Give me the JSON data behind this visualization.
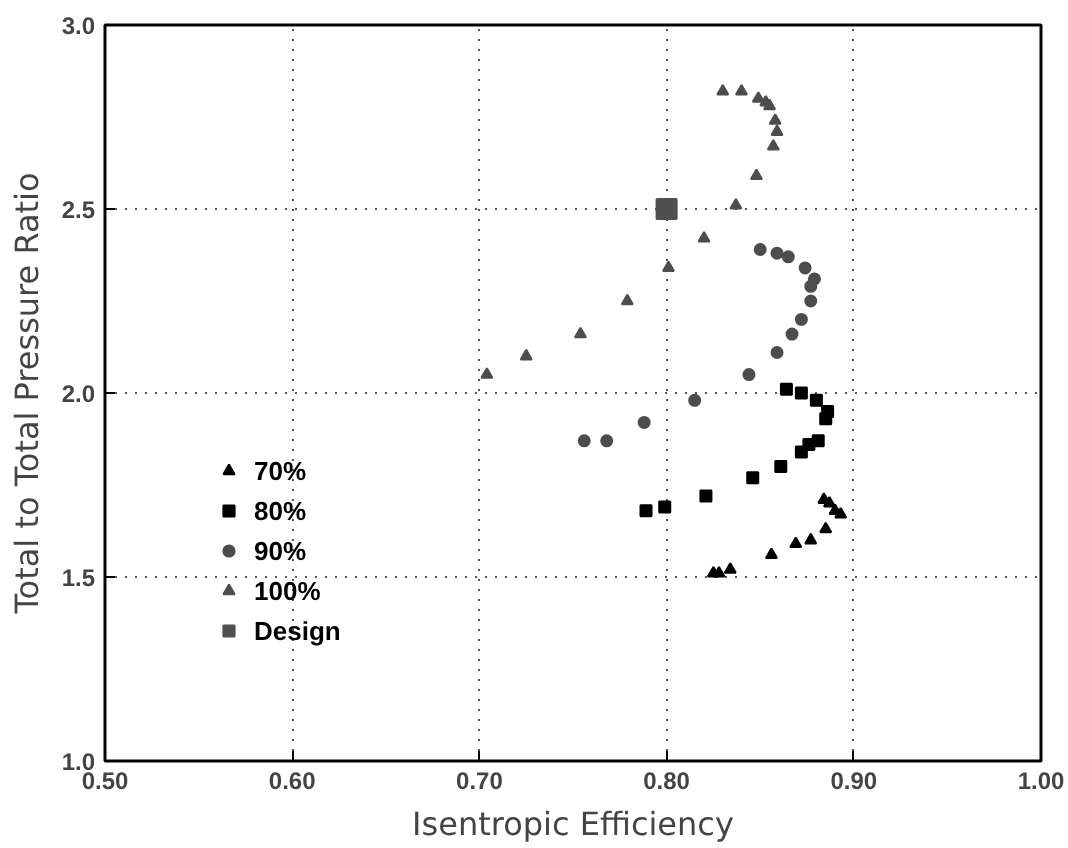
{
  "chart_data": {
    "type": "scatter",
    "xlabel": "Isentropic Efficiency",
    "ylabel": "Total to Total Pressure Ratio",
    "xlim": [
      0.5,
      1.0
    ],
    "ylim": [
      1.0,
      3.0
    ],
    "xticks": [
      {
        "value": 0.5,
        "label": "0.50"
      },
      {
        "value": 0.6,
        "label": "0.60"
      },
      {
        "value": 0.7,
        "label": "0.70"
      },
      {
        "value": 0.8,
        "label": "0.80"
      },
      {
        "value": 0.9,
        "label": "0.90"
      },
      {
        "value": 1.0,
        "label": "1.00"
      }
    ],
    "yticks": [
      {
        "value": 1.0,
        "label": "1.0"
      },
      {
        "value": 1.5,
        "label": "1.5"
      },
      {
        "value": 2.0,
        "label": "2.0"
      },
      {
        "value": 2.5,
        "label": "2.5"
      },
      {
        "value": 3.0,
        "label": "3.0"
      }
    ],
    "grid": true,
    "legend": "bottom left",
    "series": [
      {
        "name": "70%",
        "color": "#000000",
        "marker": "triangle",
        "x": [
          0.884,
          0.887,
          0.89,
          0.893,
          0.885,
          0.877,
          0.869,
          0.856,
          0.834,
          0.828,
          0.825
        ],
        "values": [
          1.71,
          1.7,
          1.68,
          1.67,
          1.63,
          1.6,
          1.59,
          1.56,
          1.52,
          1.51,
          1.51
        ]
      },
      {
        "name": "80%",
        "color": "#000000",
        "marker": "square",
        "x": [
          0.864,
          0.872,
          0.88,
          0.884,
          0.886,
          0.885,
          0.881,
          0.876,
          0.872,
          0.861,
          0.846,
          0.821,
          0.799,
          0.791,
          0.789
        ],
        "values": [
          2.01,
          2.0,
          1.98,
          null,
          1.95,
          1.93,
          1.87,
          1.86,
          1.84,
          1.8,
          1.77,
          1.72,
          1.69,
          null,
          1.68
        ]
      },
      {
        "name": "90%",
        "color": "#4d4d4d",
        "marker": "circle",
        "x": [
          0.85,
          0.859,
          0.865,
          0.874,
          0.879,
          0.877,
          0.877,
          0.872,
          0.867,
          0.859,
          0.844,
          0.815,
          0.788,
          0.768,
          0.756
        ],
        "values": [
          2.39,
          2.38,
          2.37,
          2.34,
          2.31,
          2.29,
          2.25,
          2.2,
          2.16,
          2.11,
          2.05,
          1.98,
          1.92,
          1.87,
          1.87
        ]
      },
      {
        "name": "100%",
        "color": "#4d4d4d",
        "marker": "triangle",
        "x": [
          0.83,
          0.84,
          0.849,
          0.853,
          0.855,
          0.858,
          0.859,
          0.857,
          0.848,
          0.837,
          0.82,
          0.801,
          0.779,
          0.754,
          0.725,
          0.704
        ],
        "values": [
          2.82,
          2.82,
          2.8,
          2.79,
          2.78,
          2.74,
          2.71,
          2.67,
          2.59,
          2.51,
          2.42,
          2.34,
          2.25,
          2.16,
          2.1,
          2.05
        ]
      },
      {
        "name": "Design",
        "color": "#505050",
        "marker": "square",
        "x": [
          0.8
        ],
        "values": [
          2.5
        ]
      }
    ]
  }
}
